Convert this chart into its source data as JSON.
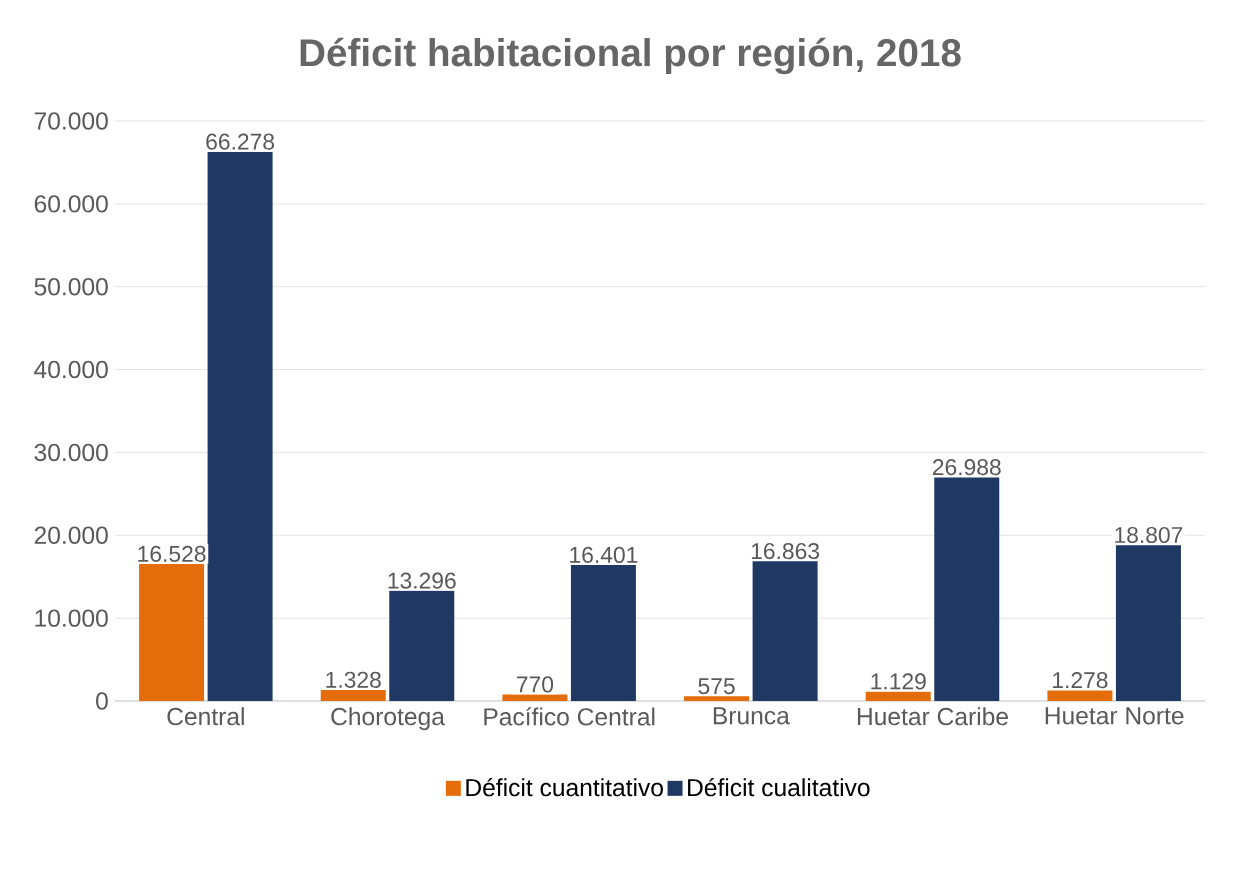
{
  "chart_data": {
    "type": "bar",
    "title": "Déficit habitacional por región, 2018",
    "categories": [
      "Central",
      "Chorotega",
      "Pacífico Central",
      "Brunca",
      "Huetar Caribe",
      "Huetar Norte"
    ],
    "series": [
      {
        "name": "Déficit cuantitativo",
        "color": "#e46c0a",
        "values": [
          16528,
          1328,
          770,
          575,
          1129,
          1278
        ],
        "value_labels": [
          "16.528",
          "1.328",
          "770",
          "575",
          "1.129",
          "1.278"
        ]
      },
      {
        "name": "Déficit cualitativo",
        "color": "#1f3864",
        "values": [
          66278,
          13296,
          16401,
          16863,
          26988,
          18807
        ],
        "value_labels": [
          "66.278",
          "13.296",
          "16.401",
          "16.863",
          "26.988",
          "18.807"
        ]
      }
    ],
    "ylim": [
      0,
      70000
    ],
    "yticks": [
      {
        "value": 0,
        "label": "0"
      },
      {
        "value": 10000,
        "label": "10.000"
      },
      {
        "value": 20000,
        "label": "20.000"
      },
      {
        "value": 30000,
        "label": "30.000"
      },
      {
        "value": 40000,
        "label": "40.000"
      },
      {
        "value": 50000,
        "label": "50.000"
      },
      {
        "value": 60000,
        "label": "60.000"
      },
      {
        "value": 70000,
        "label": "70.000"
      }
    ],
    "grid": "y",
    "legend": "bottom"
  }
}
